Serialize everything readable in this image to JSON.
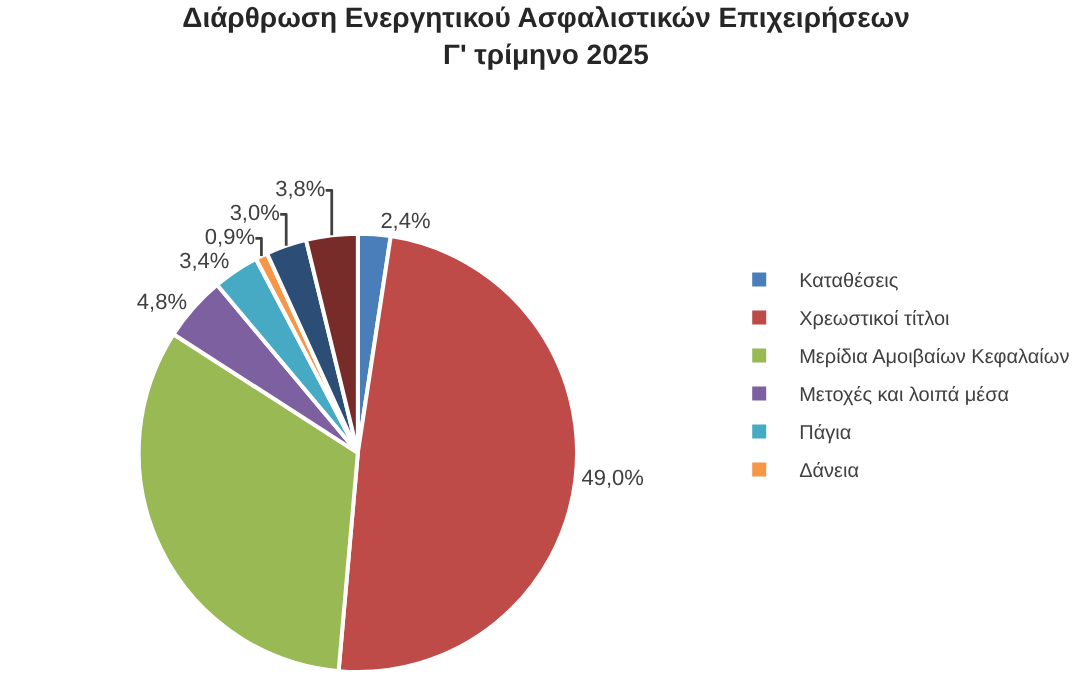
{
  "chart_data": {
    "type": "pie",
    "title": "Διάρθρωση Ενεργητικού Ασφαλιστικών Επιχειρήσεων",
    "subtitle": "Γ' τρίμηνο 2025",
    "categories": [
      "Καταθέσεις",
      "Χρεωστικοί τίτλοι",
      "Μερίδια Αμοιβαίων Κεφαλαίων",
      "Μετοχές και λοιπά μέσα",
      "Πάγια",
      "Δάνεια",
      null,
      null
    ],
    "values": [
      2.4,
      49.0,
      32.7,
      4.8,
      3.4,
      0.9,
      3.0,
      3.8
    ],
    "value_labels": [
      "2,4%",
      "49,0%",
      null,
      "4,8%",
      "3,4%",
      "0,9%",
      "3,0%",
      "3,8%"
    ],
    "colors": [
      "#4a7ebb",
      "#be4b48",
      "#98b954",
      "#7d60a0",
      "#46aac5",
      "#f79646",
      "#2c4d75",
      "#772c2a"
    ],
    "legend": "right"
  }
}
